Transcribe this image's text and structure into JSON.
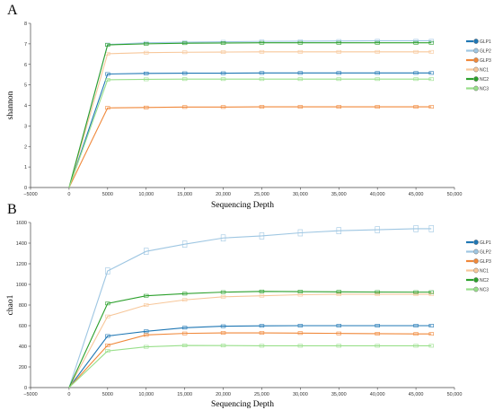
{
  "chart_data": [
    {
      "panel": "A",
      "type": "line",
      "xlabel": "Sequencing Depth",
      "ylabel": "shannon",
      "xlim": [
        -5000,
        50000
      ],
      "ylim": [
        0,
        8
      ],
      "xticks": [
        "−5000",
        "0",
        "5000",
        "10,000",
        "15,000",
        "20,000",
        "25,000",
        "30,000",
        "35,000",
        "40,000",
        "45,000",
        "50,000"
      ],
      "yticks": [
        "0",
        "1",
        "2",
        "3",
        "4",
        "5",
        "6",
        "7",
        "8"
      ],
      "x": [
        0,
        5000,
        10000,
        15000,
        20000,
        25000,
        30000,
        35000,
        40000,
        45000,
        47000
      ],
      "series": [
        {
          "name": "GLP1",
          "color": "#1f77b4",
          "values": [
            0,
            5.53,
            5.56,
            5.57,
            5.57,
            5.58,
            5.58,
            5.58,
            5.58,
            5.58,
            5.58
          ]
        },
        {
          "name": "GLP2",
          "color": "#9ec6e2",
          "values": [
            0,
            6.97,
            7.05,
            7.08,
            7.1,
            7.12,
            7.13,
            7.14,
            7.15,
            7.15,
            7.15
          ]
        },
        {
          "name": "GLP3",
          "color": "#f0883a",
          "values": [
            0,
            3.88,
            3.9,
            3.92,
            3.92,
            3.93,
            3.93,
            3.93,
            3.93,
            3.93,
            3.93
          ]
        },
        {
          "name": "NC1",
          "color": "#f7c79a",
          "values": [
            0,
            6.52,
            6.57,
            6.59,
            6.6,
            6.61,
            6.61,
            6.61,
            6.61,
            6.61,
            6.61
          ]
        },
        {
          "name": "NC2",
          "color": "#2ca02c",
          "values": [
            0,
            6.95,
            7.0,
            7.03,
            7.04,
            7.05,
            7.05,
            7.05,
            7.05,
            7.05,
            7.05
          ]
        },
        {
          "name": "NC3",
          "color": "#98df8a",
          "values": [
            0,
            5.25,
            5.27,
            5.28,
            5.28,
            5.28,
            5.28,
            5.28,
            5.28,
            5.28,
            5.28
          ]
        }
      ]
    },
    {
      "panel": "B",
      "type": "line",
      "xlabel": "Sequencing Depth",
      "ylabel": "chao1",
      "xlim": [
        -5000,
        50000
      ],
      "ylim": [
        0,
        1600
      ],
      "xticks": [
        "−5000",
        "0",
        "5000",
        "10,000",
        "15,000",
        "20,000",
        "25,000",
        "30,000",
        "35,000",
        "40,000",
        "45,000",
        "50,000"
      ],
      "yticks": [
        "0",
        "200",
        "400",
        "600",
        "800",
        "1000",
        "1200",
        "1400",
        "1600"
      ],
      "x": [
        0,
        5000,
        10000,
        15000,
        20000,
        25000,
        30000,
        35000,
        40000,
        45000,
        47000
      ],
      "series": [
        {
          "name": "GLP1",
          "color": "#1f77b4",
          "values": [
            0,
            500,
            545,
            580,
            595,
            598,
            600,
            600,
            600,
            600,
            600
          ]
        },
        {
          "name": "GLP2",
          "color": "#9ec6e2",
          "values": [
            0,
            1130,
            1320,
            1390,
            1450,
            1470,
            1500,
            1520,
            1530,
            1540,
            1540
          ]
        },
        {
          "name": "GLP3",
          "color": "#f0883a",
          "values": [
            0,
            410,
            510,
            525,
            530,
            530,
            528,
            525,
            522,
            520,
            520
          ]
        },
        {
          "name": "NC1",
          "color": "#f7c79a",
          "values": [
            0,
            690,
            800,
            850,
            880,
            890,
            900,
            905,
            905,
            905,
            905
          ]
        },
        {
          "name": "NC2",
          "color": "#2ca02c",
          "values": [
            0,
            815,
            890,
            910,
            925,
            932,
            930,
            928,
            926,
            925,
            925
          ]
        },
        {
          "name": "NC3",
          "color": "#98df8a",
          "values": [
            0,
            355,
            395,
            408,
            407,
            405,
            405,
            405,
            405,
            405,
            405
          ]
        }
      ]
    }
  ]
}
